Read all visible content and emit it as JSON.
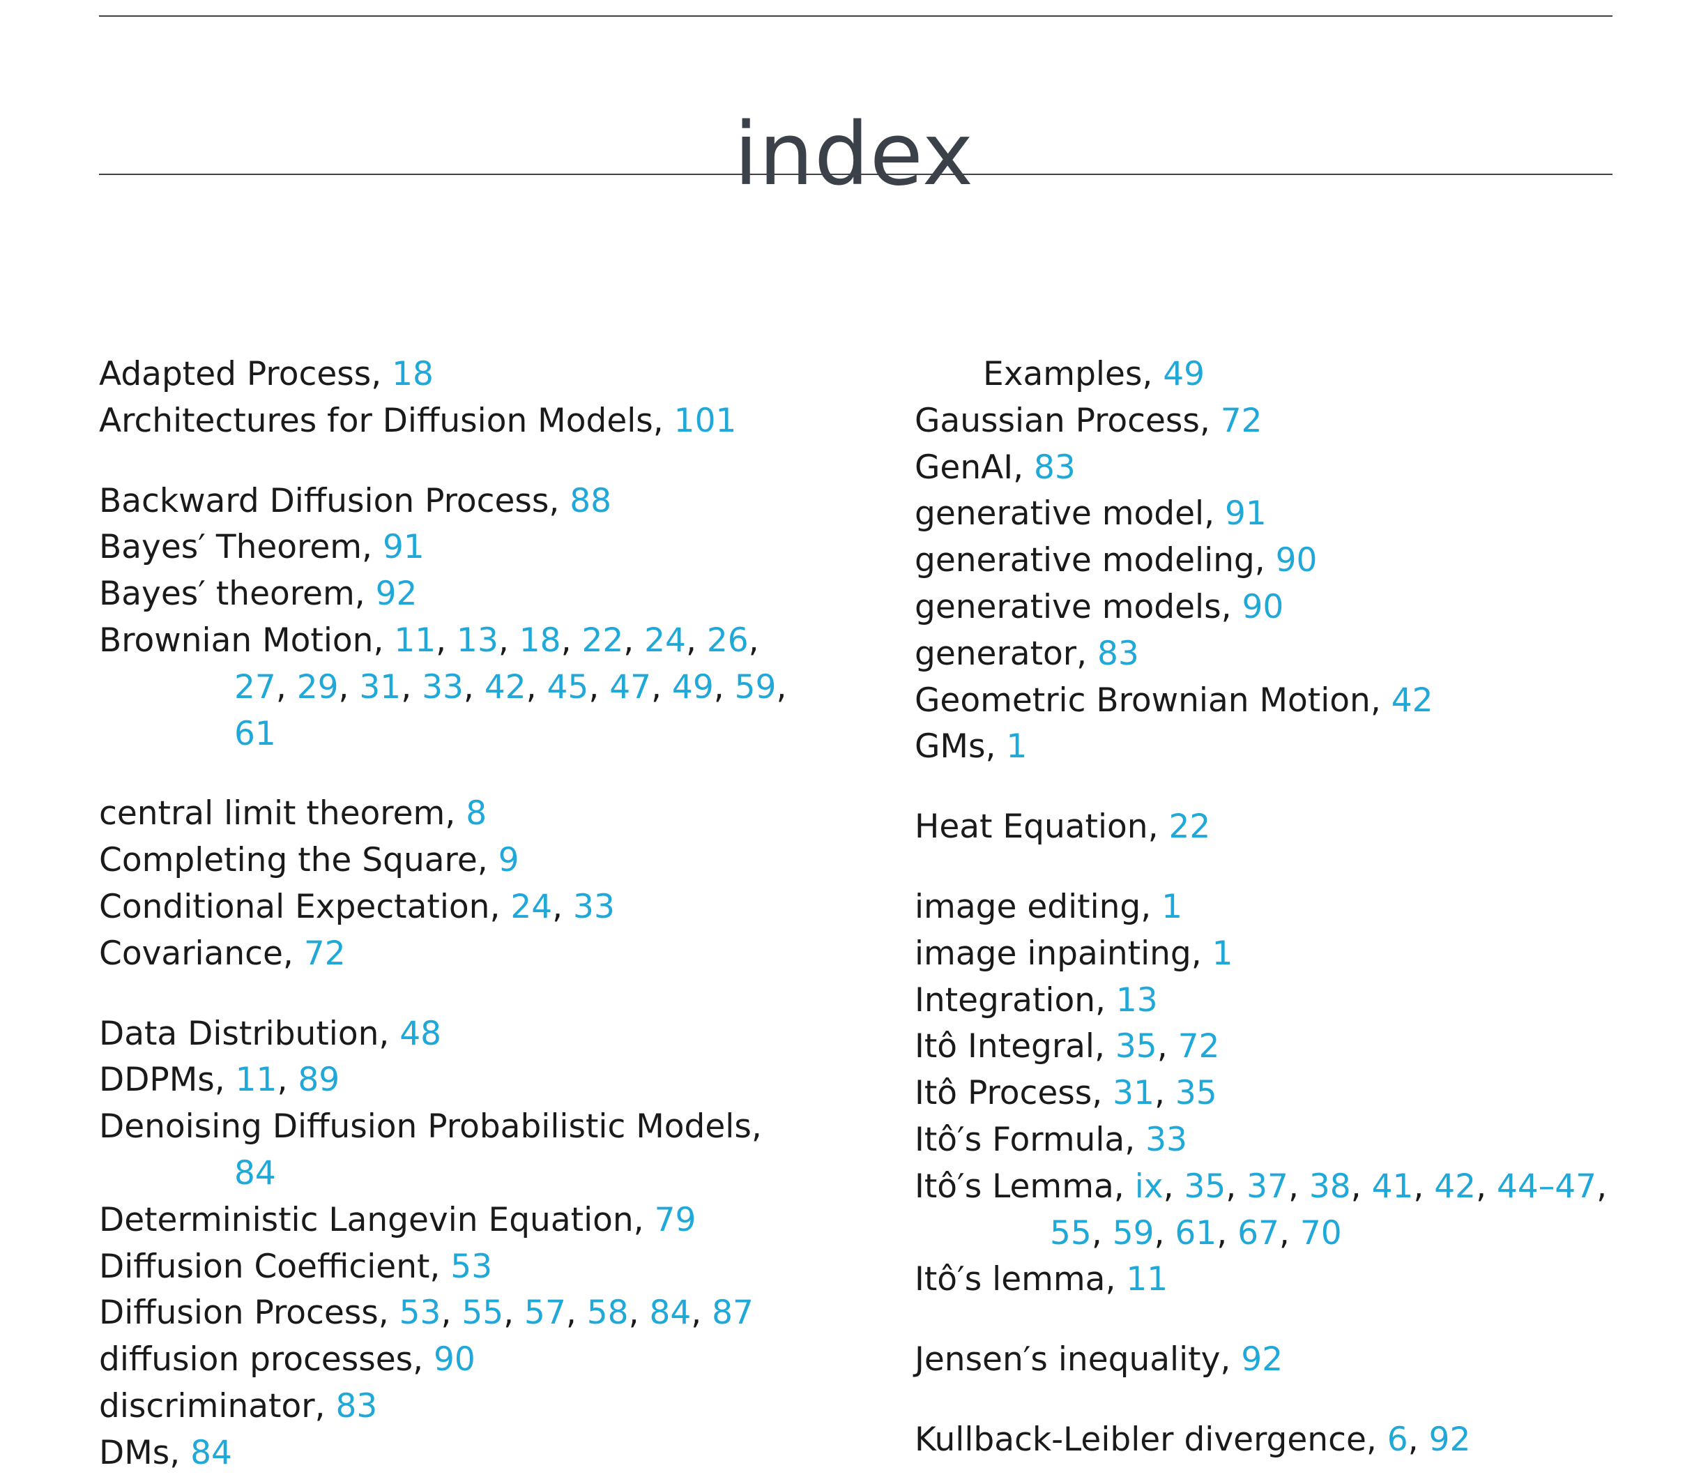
{
  "page": {
    "title": "index"
  },
  "colors": {
    "heading": "#3a4148",
    "text": "#1a1a1a",
    "page_link": "#1fa8d8",
    "rule": "#3d4349"
  },
  "columns": [
    [
      {
        "term": "Adapted Process",
        "pages": [
          "18"
        ]
      },
      {
        "term": "Architectures for Diffusion Models",
        "pages": [
          "101"
        ]
      },
      {
        "term": "Backward Diffusion Process",
        "pages": [
          "88"
        ],
        "gap": true
      },
      {
        "term": "Bayes′ Theorem",
        "pages": [
          "91"
        ]
      },
      {
        "term": "Bayes′ theorem",
        "pages": [
          "92"
        ]
      },
      {
        "term": "Brownian Motion",
        "pages": [
          "11",
          "13",
          "18",
          "22",
          "24",
          "26",
          "27",
          "29",
          "31",
          "33",
          "42",
          "45",
          "47",
          "49",
          "59",
          "61"
        ],
        "breaks": [
          6,
          15
        ]
      },
      {
        "term": "central limit theorem",
        "pages": [
          "8"
        ],
        "gap": true
      },
      {
        "term": "Completing the Square",
        "pages": [
          "9"
        ]
      },
      {
        "term": "Conditional Expectation",
        "pages": [
          "24",
          "33"
        ]
      },
      {
        "term": "Covariance",
        "pages": [
          "72"
        ]
      },
      {
        "term": "Data Distribution",
        "pages": [
          "48"
        ],
        "gap": true
      },
      {
        "term": "DDPMs",
        "pages": [
          "11",
          "89"
        ]
      },
      {
        "term": "Denoising Diffusion Probabilistic Models",
        "pages": [
          "84"
        ],
        "breaks": [
          0
        ]
      },
      {
        "term": "Deterministic Langevin Equation",
        "pages": [
          "79"
        ]
      },
      {
        "term": "Diffusion Coefficient",
        "pages": [
          "53"
        ]
      },
      {
        "term": "Diffusion Process",
        "pages": [
          "53",
          "55",
          "57",
          "58",
          "84",
          "87"
        ]
      },
      {
        "term": "diffusion processes",
        "pages": [
          "90"
        ]
      },
      {
        "term": "discriminator",
        "pages": [
          "83"
        ]
      },
      {
        "term": "DMs",
        "pages": [
          "84"
        ]
      }
    ],
    [
      {
        "term": "Examples",
        "pages": [
          "49"
        ],
        "sub": true
      },
      {
        "term": "Gaussian Process",
        "pages": [
          "72"
        ]
      },
      {
        "term": "GenAI",
        "pages": [
          "83"
        ]
      },
      {
        "term": "generative model",
        "pages": [
          "91"
        ]
      },
      {
        "term": "generative modeling",
        "pages": [
          "90"
        ]
      },
      {
        "term": "generative models",
        "pages": [
          "90"
        ]
      },
      {
        "term": "generator",
        "pages": [
          "83"
        ]
      },
      {
        "term": "Geometric Brownian Motion",
        "pages": [
          "42"
        ]
      },
      {
        "term": "GMs",
        "pages": [
          "1"
        ]
      },
      {
        "term": "Heat Equation",
        "pages": [
          "22"
        ],
        "gap": true
      },
      {
        "term": "image editing",
        "pages": [
          "1"
        ],
        "gap": true
      },
      {
        "term": "image inpainting",
        "pages": [
          "1"
        ]
      },
      {
        "term": "Integration",
        "pages": [
          "13"
        ]
      },
      {
        "term": "Itô Integral",
        "pages": [
          "35",
          "72"
        ]
      },
      {
        "term": "Itô Process",
        "pages": [
          "31",
          "35"
        ]
      },
      {
        "term": "Itô′s Formula",
        "pages": [
          "33"
        ]
      },
      {
        "term": "Itô′s Lemma",
        "pages": [
          "ix",
          "35",
          "37",
          "38",
          "41",
          "42",
          "44–47",
          "55",
          "59",
          "61",
          "67",
          "70"
        ],
        "breaks": [
          7
        ]
      },
      {
        "term": "Itô′s lemma",
        "pages": [
          "11"
        ]
      },
      {
        "term": "Jensen′s inequality",
        "pages": [
          "92"
        ],
        "gap": true
      },
      {
        "term": "Kullback-Leibler divergence",
        "pages": [
          "6",
          "92"
        ],
        "gap": true
      }
    ]
  ]
}
